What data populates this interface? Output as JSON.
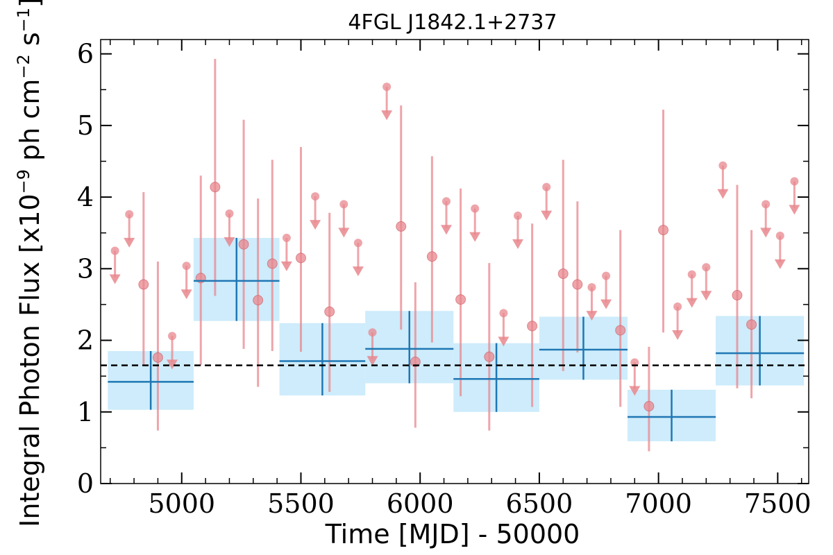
{
  "chart_data": {
    "type": "scatter",
    "title": "4FGL J1842.1+2737",
    "xlabel": "Time [MJD] - 50000",
    "ylabel_parts": {
      "prefix": "Integral Photon Flux [x10",
      "exp1": "−9",
      "mid": " ph cm",
      "exp2": "−2",
      "mid2": " s",
      "exp3": "−1",
      "suffix": "]"
    },
    "xlim": [
      4660,
      7630
    ],
    "ylim": [
      0,
      6.2
    ],
    "xticks": [
      5000,
      5500,
      6000,
      6500,
      7000,
      7500
    ],
    "xtick_labels": [
      "5000",
      "5500",
      "6000",
      "6500",
      "7000",
      "7500"
    ],
    "yticks": [
      0,
      1,
      2,
      3,
      4,
      5,
      6
    ],
    "ytick_labels": [
      "0",
      "1",
      "2",
      "3",
      "4",
      "5",
      "6"
    ],
    "grid": false,
    "mean_flux": 1.65,
    "colors": {
      "fine": "#e8878d",
      "coarse_line": "#1f77b4",
      "coarse_band": "#a6dcf7",
      "mean_line": "#000000"
    },
    "fine_detections": [
      {
        "x": 4840,
        "y": 2.78,
        "lo": 1.65,
        "hi": 4.07
      },
      {
        "x": 4900,
        "y": 1.76,
        "lo": 0.74,
        "hi": 3.1
      },
      {
        "x": 5080,
        "y": 2.87,
        "lo": 1.65,
        "hi": 4.3
      },
      {
        "x": 5140,
        "y": 4.14,
        "lo": 2.62,
        "hi": 5.93
      },
      {
        "x": 5260,
        "y": 3.34,
        "lo": 1.88,
        "hi": 5.08
      },
      {
        "x": 5320,
        "y": 2.56,
        "lo": 1.35,
        "hi": 3.98
      },
      {
        "x": 5380,
        "y": 3.07,
        "lo": 1.85,
        "hi": 4.52
      },
      {
        "x": 5500,
        "y": 3.15,
        "lo": 1.84,
        "hi": 4.7
      },
      {
        "x": 5620,
        "y": 2.4,
        "lo": 1.28,
        "hi": 3.78
      },
      {
        "x": 5920,
        "y": 3.59,
        "lo": 2.15,
        "hi": 5.28
      },
      {
        "x": 5980,
        "y": 1.7,
        "lo": 0.78,
        "hi": 2.81
      },
      {
        "x": 6050,
        "y": 3.17,
        "lo": 1.97,
        "hi": 4.57
      },
      {
        "x": 6170,
        "y": 2.57,
        "lo": 1.22,
        "hi": 4.12
      },
      {
        "x": 6290,
        "y": 1.77,
        "lo": 0.74,
        "hi": 3.08
      },
      {
        "x": 6470,
        "y": 2.2,
        "lo": 1.07,
        "hi": 3.63
      },
      {
        "x": 6600,
        "y": 2.93,
        "lo": 1.57,
        "hi": 4.52
      },
      {
        "x": 6660,
        "y": 2.78,
        "lo": 1.83,
        "hi": 3.94
      },
      {
        "x": 6840,
        "y": 2.14,
        "lo": 1.07,
        "hi": 3.54
      },
      {
        "x": 6960,
        "y": 1.08,
        "lo": 0.45,
        "hi": 1.91
      },
      {
        "x": 7020,
        "y": 3.54,
        "lo": 2.11,
        "hi": 5.22
      },
      {
        "x": 7330,
        "y": 2.63,
        "lo": 1.33,
        "hi": 4.17
      },
      {
        "x": 7390,
        "y": 2.22,
        "lo": 1.19,
        "hi": 3.54
      }
    ],
    "fine_upper_limits": [
      {
        "x": 4720,
        "y": 3.25
      },
      {
        "x": 4780,
        "y": 3.76
      },
      {
        "x": 4960,
        "y": 2.06
      },
      {
        "x": 5020,
        "y": 3.04
      },
      {
        "x": 5200,
        "y": 3.77
      },
      {
        "x": 5440,
        "y": 3.43
      },
      {
        "x": 5560,
        "y": 4.01
      },
      {
        "x": 5680,
        "y": 3.9
      },
      {
        "x": 5740,
        "y": 3.36
      },
      {
        "x": 5800,
        "y": 2.11
      },
      {
        "x": 5860,
        "y": 5.54
      },
      {
        "x": 6110,
        "y": 3.94
      },
      {
        "x": 6230,
        "y": 3.84
      },
      {
        "x": 6350,
        "y": 2.38
      },
      {
        "x": 6410,
        "y": 3.74
      },
      {
        "x": 6530,
        "y": 4.14
      },
      {
        "x": 6720,
        "y": 2.74
      },
      {
        "x": 6780,
        "y": 2.9
      },
      {
        "x": 6900,
        "y": 1.69
      },
      {
        "x": 7080,
        "y": 2.47
      },
      {
        "x": 7140,
        "y": 2.92
      },
      {
        "x": 7200,
        "y": 3.02
      },
      {
        "x": 7270,
        "y": 4.44
      },
      {
        "x": 7450,
        "y": 3.9
      },
      {
        "x": 7510,
        "y": 3.46
      },
      {
        "x": 7570,
        "y": 4.22
      }
    ],
    "coarse_bins": [
      {
        "x0": 4690,
        "x1": 5050,
        "xc": 4870,
        "y": 1.42,
        "band_lo": 1.03,
        "band_hi": 1.85,
        "err_lo": 1.03,
        "err_hi": 1.85
      },
      {
        "x0": 5050,
        "x1": 5410,
        "xc": 5230,
        "y": 2.83,
        "band_lo": 2.27,
        "band_hi": 3.43,
        "err_lo": 2.27,
        "err_hi": 3.43
      },
      {
        "x0": 5410,
        "x1": 5770,
        "xc": 5590,
        "y": 1.71,
        "band_lo": 1.23,
        "band_hi": 2.24,
        "err_lo": 1.23,
        "err_hi": 2.24
      },
      {
        "x0": 5770,
        "x1": 6140,
        "xc": 5955,
        "y": 1.88,
        "band_lo": 1.4,
        "band_hi": 2.41,
        "err_lo": 1.4,
        "err_hi": 2.41
      },
      {
        "x0": 6140,
        "x1": 6500,
        "xc": 6320,
        "y": 1.46,
        "band_lo": 1.0,
        "band_hi": 1.96,
        "err_lo": 1.0,
        "err_hi": 1.96
      },
      {
        "x0": 6500,
        "x1": 6870,
        "xc": 6685,
        "y": 1.87,
        "band_lo": 1.45,
        "band_hi": 2.33,
        "err_lo": 1.45,
        "err_hi": 2.33
      },
      {
        "x0": 6870,
        "x1": 7240,
        "xc": 7055,
        "y": 0.93,
        "band_lo": 0.59,
        "band_hi": 1.31,
        "err_lo": 0.59,
        "err_hi": 1.31
      },
      {
        "x0": 7240,
        "x1": 7610,
        "xc": 7425,
        "y": 1.82,
        "band_lo": 1.37,
        "band_hi": 2.34,
        "err_lo": 1.37,
        "err_hi": 2.34
      }
    ]
  }
}
